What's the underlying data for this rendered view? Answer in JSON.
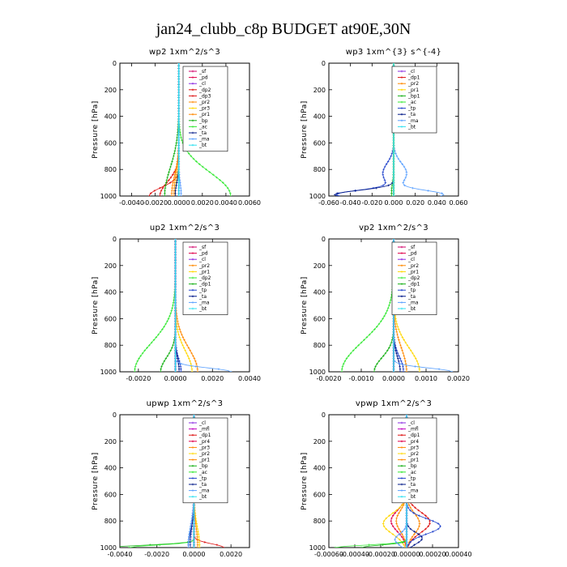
{
  "title": "jan24_clubb_c8p  BUDGET at90E,30N",
  "y_axis": {
    "label": "Pressure [hPa]",
    "range": [
      0,
      1000
    ],
    "ticks": [
      0,
      200,
      400,
      600,
      800,
      1000
    ]
  },
  "colors": {
    "cl": "#8a2be2",
    "mfl": "#c000c0",
    "pd": "#e0004a",
    "sf": "#d00068",
    "dp": "#dd1111",
    "pr": "#ff8800",
    "pr_alt": "#ffd700",
    "bp": "#16b016",
    "ac": "#33e833",
    "tp": "#2244cc",
    "ta": "#001888",
    "ma": "#5aa0ff",
    "bt": "#30e0f0"
  },
  "chart_data": [
    {
      "type": "line",
      "title": "wp2  1xm^2/s^3",
      "xlim": [
        -0.005,
        0.006
      ],
      "xticks": [
        "-0.0040",
        "-0.0020",
        "0.0000",
        "0.0020",
        "0.0040",
        "0.0060"
      ],
      "xtick_values": [
        -0.004,
        -0.002,
        0,
        0.002,
        0.004,
        0.006
      ],
      "legend": [
        "_sf",
        "_pd",
        "_cl",
        "_dp2",
        "_dp3",
        "_pr2",
        "_pr3",
        "_pr1",
        "_bp",
        "_ac",
        "_ta",
        "_ma",
        "_bt"
      ],
      "series": [
        {
          "name": "_sf",
          "color_key": "sf",
          "profile": "zero"
        },
        {
          "name": "_pd",
          "color_key": "pd",
          "profile": "zero"
        },
        {
          "name": "_cl",
          "color_key": "cl",
          "profile": "zero"
        },
        {
          "name": "_dp2",
          "color_key": "dp",
          "profile": "bump",
          "amp": -0.0016,
          "center": 1000,
          "width": 150
        },
        {
          "name": "_dp3",
          "color_key": "dp",
          "profile": "bump",
          "amp": -0.0025,
          "center": 1000,
          "width": 90
        },
        {
          "name": "_pr2",
          "color_key": "pr",
          "profile": "bump",
          "amp": -0.0004,
          "center": 980,
          "width": 200
        },
        {
          "name": "_pr3",
          "color_key": "pr_alt",
          "profile": "bump",
          "amp": -0.0003,
          "center": 990,
          "width": 150
        },
        {
          "name": "_pr1",
          "color_key": "pr",
          "profile": "bump",
          "amp": -0.0006,
          "center": 990,
          "width": 200
        },
        {
          "name": "_bp",
          "color_key": "bp",
          "profile": "bump",
          "amp": -0.0012,
          "center": 1000,
          "width": 300
        },
        {
          "name": "_ac",
          "color_key": "ac",
          "profile": "bump",
          "amp": 0.0044,
          "center": 1000,
          "width": 250
        },
        {
          "name": "_ta",
          "color_key": "ta",
          "profile": "bump",
          "amp": -0.0003,
          "center": 990,
          "width": 120
        },
        {
          "name": "_ma",
          "color_key": "ma",
          "profile": "bump",
          "amp": 0.0002,
          "center": 990,
          "width": 120
        },
        {
          "name": "_bt",
          "color_key": "bt",
          "profile": "zero"
        }
      ]
    },
    {
      "type": "line",
      "title": "wp3  1xm^{3} s^{-4}",
      "xlim": [
        -0.06,
        0.06
      ],
      "xticks": [
        "-0.060",
        "-0.040",
        "-0.020",
        "0.000",
        "0.020",
        "0.040",
        "0.060"
      ],
      "xtick_values": [
        -0.06,
        -0.04,
        -0.02,
        0,
        0.02,
        0.04,
        0.06
      ],
      "legend": [
        "_cl",
        "_dp1",
        "_pr2",
        "_pr1",
        "_bp1",
        "_ac",
        "_tp",
        "_ta",
        "_ma",
        "_bt"
      ],
      "series": [
        {
          "name": "_cl",
          "color_key": "cl",
          "profile": "zero"
        },
        {
          "name": "_dp1",
          "color_key": "dp",
          "profile": "zero"
        },
        {
          "name": "_pr2",
          "color_key": "pr",
          "profile": "zero"
        },
        {
          "name": "_pr1",
          "color_key": "pr_alt",
          "profile": "zero"
        },
        {
          "name": "_bp1",
          "color_key": "bp",
          "profile": "bump",
          "amp": -0.002,
          "center": 980,
          "width": 100
        },
        {
          "name": "_ac",
          "color_key": "ac",
          "profile": "zero"
        },
        {
          "name": "_tp",
          "color_key": "tp",
          "profile": "wave",
          "amp": -0.01,
          "center": 830,
          "width": 110,
          "amp2": -0.052,
          "center2": 990,
          "width2": 45
        },
        {
          "name": "_ta",
          "color_key": "ta",
          "profile": "bump",
          "amp": -0.055,
          "center": 990,
          "width": 45
        },
        {
          "name": "_ma",
          "color_key": "ma",
          "profile": "wave",
          "amp": 0.012,
          "center": 830,
          "width": 110,
          "amp2": 0.045,
          "center2": 990,
          "width2": 45
        },
        {
          "name": "_bt",
          "color_key": "bt",
          "profile": "zero"
        }
      ]
    },
    {
      "type": "line",
      "title": "up2  1xm^2/s^3",
      "xlim": [
        -0.003,
        0.004
      ],
      "xticks": [
        "-0.0020",
        "0.0000",
        "0.0020",
        "0.0040"
      ],
      "xtick_values": [
        -0.002,
        0,
        0.002,
        0.004
      ],
      "legend": [
        "_sf",
        "_pd",
        "_cl",
        "_pr2",
        "_pr1",
        "_dp2",
        "_dp1",
        "_tp",
        "_ta",
        "_ma",
        "_bt"
      ],
      "series": [
        {
          "name": "_sf",
          "color_key": "sf",
          "profile": "zero"
        },
        {
          "name": "_pd",
          "color_key": "pd",
          "profile": "zero"
        },
        {
          "name": "_cl",
          "color_key": "cl",
          "profile": "zero"
        },
        {
          "name": "_pr2",
          "color_key": "pr",
          "profile": "bump",
          "amp": 0.0012,
          "center": 1000,
          "width": 250
        },
        {
          "name": "_pr1",
          "color_key": "pr_alt",
          "profile": "bump",
          "amp": 0.0009,
          "center": 1000,
          "width": 220
        },
        {
          "name": "_dp2",
          "color_key": "ac",
          "profile": "bump",
          "amp": -0.0022,
          "center": 1000,
          "width": 300
        },
        {
          "name": "_dp1",
          "color_key": "bp",
          "profile": "bump",
          "amp": -0.0008,
          "center": 1000,
          "width": 150
        },
        {
          "name": "_tp",
          "color_key": "tp",
          "profile": "bump",
          "amp": 0.0003,
          "center": 990,
          "width": 120
        },
        {
          "name": "_ta",
          "color_key": "ta",
          "profile": "bump",
          "amp": 0.0002,
          "center": 990,
          "width": 120
        },
        {
          "name": "_ma",
          "color_key": "ma",
          "profile": "bump",
          "amp": 0.003,
          "center": 1000,
          "width": 40
        },
        {
          "name": "_bt",
          "color_key": "bt",
          "profile": "zero"
        }
      ]
    },
    {
      "type": "line",
      "title": "vp2  1xm^2/s^3",
      "xlim": [
        -0.002,
        0.002
      ],
      "xticks": [
        "-0.0020",
        "-0.0010",
        "0.0000",
        "0.0010",
        "0.0020"
      ],
      "xtick_values": [
        -0.002,
        -0.001,
        0,
        0.001,
        0.002
      ],
      "legend": [
        "_sf",
        "_pd",
        "_cl",
        "_pr2",
        "_pr1",
        "_dp2",
        "_dp1",
        "_tp",
        "_ta",
        "_ma",
        "_bt"
      ],
      "series": [
        {
          "name": "_sf",
          "color_key": "sf",
          "profile": "zero"
        },
        {
          "name": "_pd",
          "color_key": "pd",
          "profile": "zero"
        },
        {
          "name": "_cl",
          "color_key": "cl",
          "profile": "zero"
        },
        {
          "name": "_pr2",
          "color_key": "pr",
          "profile": "bump",
          "amp": 0.0004,
          "center": 1000,
          "width": 250
        },
        {
          "name": "_pr1",
          "color_key": "pr_alt",
          "profile": "bump",
          "amp": 0.0008,
          "center": 1000,
          "width": 250
        },
        {
          "name": "_dp2",
          "color_key": "ac",
          "profile": "bump",
          "amp": -0.0016,
          "center": 1000,
          "width": 320
        },
        {
          "name": "_dp1",
          "color_key": "bp",
          "profile": "bump",
          "amp": -0.0006,
          "center": 1000,
          "width": 150
        },
        {
          "name": "_tp",
          "color_key": "tp",
          "profile": "bump",
          "amp": 0.0003,
          "center": 990,
          "width": 140
        },
        {
          "name": "_ta",
          "color_key": "ta",
          "profile": "bump",
          "amp": 0.0002,
          "center": 990,
          "width": 140
        },
        {
          "name": "_ma",
          "color_key": "ma",
          "profile": "bump",
          "amp": 0.0018,
          "center": 1000,
          "width": 40
        },
        {
          "name": "_bt",
          "color_key": "bt",
          "profile": "zero"
        }
      ]
    },
    {
      "type": "line",
      "title": "upwp  1xm^2/s^3",
      "xlim": [
        -0.004,
        0.003
      ],
      "xticks": [
        "-0.0040",
        "-0.0020",
        "0.0000",
        "0.0020"
      ],
      "xtick_values": [
        -0.004,
        -0.002,
        0,
        0.002
      ],
      "legend": [
        "_cl",
        "_mfl",
        "_dp1",
        "_pr4",
        "_pr3",
        "_pr2",
        "_pr1",
        "_bp",
        "_ac",
        "_tp",
        "_ta",
        "_ma",
        "_bt"
      ],
      "series": [
        {
          "name": "_cl",
          "color_key": "cl",
          "profile": "zero"
        },
        {
          "name": "_mfl",
          "color_key": "mfl",
          "profile": "zero"
        },
        {
          "name": "_dp1",
          "color_key": "dp",
          "profile": "bump",
          "amp": 0.0016,
          "center": 1000,
          "width": 40
        },
        {
          "name": "_pr4",
          "color_key": "pd",
          "profile": "zero"
        },
        {
          "name": "_pr3",
          "color_key": "pr",
          "profile": "bump",
          "amp": 0.0002,
          "center": 990,
          "width": 200
        },
        {
          "name": "_pr2",
          "color_key": "pr_alt",
          "profile": "bump",
          "amp": 0.0003,
          "center": 990,
          "width": 200
        },
        {
          "name": "_pr1",
          "color_key": "pr",
          "profile": "bump",
          "amp": -0.0002,
          "center": 990,
          "width": 200
        },
        {
          "name": "_bp",
          "color_key": "bp",
          "profile": "bump",
          "amp": -0.0045,
          "center": 1000,
          "width": 25
        },
        {
          "name": "_ac",
          "color_key": "ac",
          "profile": "bump",
          "amp": -0.0035,
          "center": 1000,
          "width": 25
        },
        {
          "name": "_tp",
          "color_key": "tp",
          "profile": "bump",
          "amp": -0.0002,
          "center": 990,
          "width": 200
        },
        {
          "name": "_ta",
          "color_key": "ta",
          "profile": "bump",
          "amp": -0.0003,
          "center": 990,
          "width": 160
        },
        {
          "name": "_ma",
          "color_key": "ma",
          "profile": "bump",
          "amp": -0.0003,
          "center": 980,
          "width": 200
        },
        {
          "name": "_bt",
          "color_key": "bt",
          "profile": "zero"
        }
      ]
    },
    {
      "type": "line",
      "title": "vpwp  1xm^2/s^3",
      "xlim": [
        -0.0006,
        0.0004
      ],
      "xticks": [
        "-0.00060",
        "-0.00040",
        "-0.00020",
        "0.00000",
        "0.00020",
        "0.00040"
      ],
      "xtick_values": [
        -0.0006,
        -0.0004,
        -0.0002,
        0,
        0.0002,
        0.0004
      ],
      "legend": [
        "_cl",
        "_mfl",
        "_dp1",
        "_pr4",
        "_pr3",
        "_pr2",
        "_pr1",
        "_bp",
        "_ac",
        "_tp",
        "_ta",
        "_ma",
        "_bt"
      ],
      "series": [
        {
          "name": "_cl",
          "color_key": "cl",
          "profile": "zero"
        },
        {
          "name": "_mfl",
          "color_key": "mfl",
          "profile": "zero"
        },
        {
          "name": "_dp1",
          "color_key": "dp",
          "profile": "bump",
          "amp": 0.00018,
          "center": 810,
          "width": 110
        },
        {
          "name": "_pr4",
          "color_key": "pd",
          "profile": "bump",
          "amp": -0.00012,
          "center": 800,
          "width": 110
        },
        {
          "name": "_pr3",
          "color_key": "pr",
          "profile": "bump",
          "amp": 0.0001,
          "center": 820,
          "width": 110
        },
        {
          "name": "_pr2",
          "color_key": "pr_alt",
          "profile": "bump",
          "amp": -0.00018,
          "center": 820,
          "width": 110
        },
        {
          "name": "_pr1",
          "color_key": "pr",
          "profile": "bump",
          "amp": -8e-05,
          "center": 800,
          "width": 110
        },
        {
          "name": "_bp",
          "color_key": "bp",
          "profile": "bump",
          "amp": -0.00035,
          "center": 1000,
          "width": 25
        },
        {
          "name": "_ac",
          "color_key": "ac",
          "profile": "bump",
          "amp": -0.00055,
          "center": 1000,
          "width": 25
        },
        {
          "name": "_tp",
          "color_key": "tp",
          "profile": "bump",
          "amp": 0.00026,
          "center": 840,
          "width": 80
        },
        {
          "name": "_ta",
          "color_key": "ta",
          "profile": "bump",
          "amp": 0.00012,
          "center": 930,
          "width": 60
        },
        {
          "name": "_ma",
          "color_key": "ma",
          "profile": "bump",
          "amp": -9e-05,
          "center": 940,
          "width": 60
        },
        {
          "name": "_bt",
          "color_key": "bt",
          "profile": "zero"
        }
      ]
    }
  ]
}
